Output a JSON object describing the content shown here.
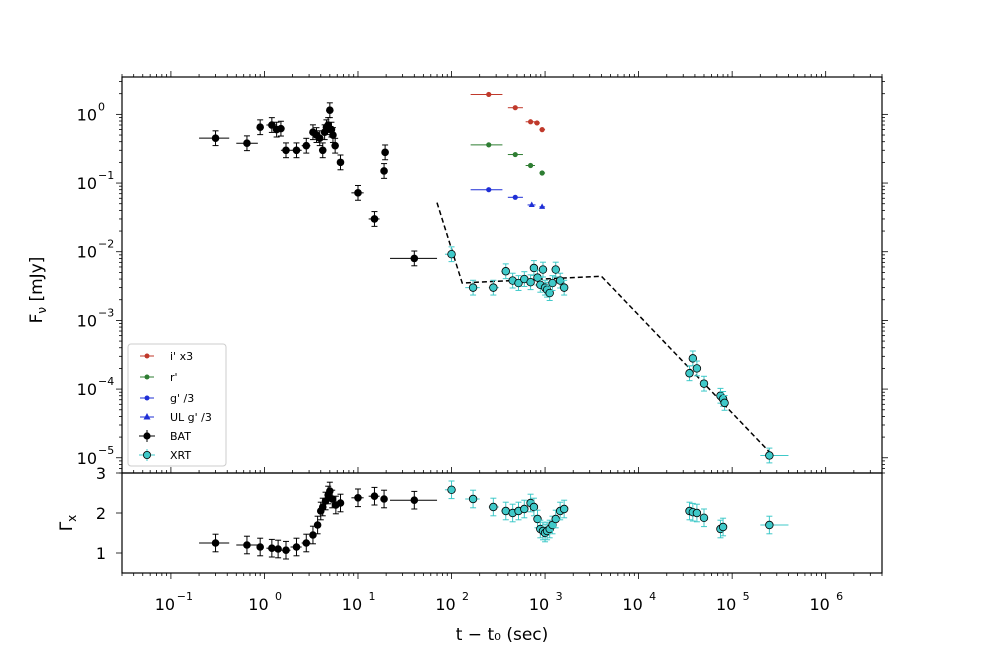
{
  "chart_data": {
    "type": "scatter",
    "x_scale": "log",
    "xlim": [
      0.03,
      4000000
    ],
    "xlabel": "t − t₀ (sec)",
    "x_tick_labels": [
      "10",
      "10",
      "10",
      "10",
      "10",
      "10",
      "10",
      "10"
    ],
    "x_tick_exponents": [
      "−1",
      "0",
      "1",
      "2",
      "3",
      "4",
      "5",
      "6"
    ],
    "x_tick_values": [
      0.1,
      1,
      10,
      100,
      1000,
      10000,
      100000,
      1000000
    ],
    "top_panel": {
      "ylabel": "F",
      "ylabel_sub": "ν",
      "ylabel_unit": " [mJy]",
      "y_scale": "log",
      "ylim": [
        6e-06,
        3.5
      ],
      "y_tick_labels": [
        "10",
        "10",
        "10",
        "10",
        "10",
        "10"
      ],
      "y_tick_exponents": [
        "0",
        "−1",
        "−2",
        "−3",
        "−4",
        "−5"
      ],
      "y_tick_values": [
        1,
        0.1,
        0.01,
        0.001,
        0.0001,
        1e-05
      ],
      "legend_position": "lower-left",
      "legend": [
        {
          "label": "i' x3",
          "color": "#c0392b",
          "marker": "circle-small"
        },
        {
          "label": "r'",
          "color": "#2e7d32",
          "marker": "circle-small"
        },
        {
          "label": "g' /3",
          "color": "#1f2fd6",
          "marker": "circle-small"
        },
        {
          "label": "UL g' /3",
          "color": "#1f2fd6",
          "marker": "triangle"
        },
        {
          "label": "BAT",
          "color": "#000000",
          "marker": "circle-large"
        },
        {
          "label": "XRT",
          "color": "#3fc9c9",
          "marker": "circle-outlined"
        }
      ],
      "series": [
        {
          "name": "BAT",
          "color": "#000000",
          "points": [
            [
              0.3,
              0.45,
              0.2,
              0.42
            ],
            [
              0.65,
              0.38,
              0.5,
              0.85
            ],
            [
              0.9,
              0.65,
              0.85,
              0.98
            ],
            [
              1.2,
              0.7,
              1.05,
              1.35
            ],
            [
              1.35,
              0.6,
              1.25,
              1.45
            ],
            [
              1.5,
              0.62,
              1.4,
              1.6
            ],
            [
              1.7,
              0.3,
              1.5,
              1.9
            ],
            [
              2.2,
              0.3,
              1.9,
              2.5
            ],
            [
              2.8,
              0.35,
              2.5,
              3.1
            ],
            [
              3.3,
              0.55,
              3.1,
              3.5
            ],
            [
              3.6,
              0.5,
              3.4,
              3.8
            ],
            [
              3.9,
              0.45,
              3.7,
              4.1
            ],
            [
              4.2,
              0.3,
              4.0,
              4.4
            ],
            [
              4.4,
              0.55,
              4.3,
              4.5
            ],
            [
              4.6,
              0.65,
              4.5,
              4.7
            ],
            [
              4.8,
              0.7,
              4.7,
              4.9
            ],
            [
              5.0,
              1.15,
              4.9,
              5.1
            ],
            [
              5.2,
              0.6,
              5.1,
              5.3
            ],
            [
              5.4,
              0.5,
              5.3,
              5.5
            ],
            [
              5.7,
              0.35,
              5.5,
              5.9
            ],
            [
              6.5,
              0.2,
              6.0,
              7.0
            ],
            [
              10,
              0.072,
              8.5,
              11.5
            ],
            [
              15,
              0.03,
              13,
              17
            ],
            [
              19,
              0.15,
              18,
              20
            ],
            [
              19.5,
              0.28,
              18.5,
              20.5
            ],
            [
              40,
              0.008,
              22,
              70
            ]
          ]
        },
        {
          "name": "XRT",
          "color": "#3fc9c9",
          "points": [
            [
              100,
              0.0092,
              85,
              110
            ],
            [
              170,
              0.003,
              140,
              200
            ],
            [
              280,
              0.003,
              250,
              320
            ],
            [
              380,
              0.0052,
              340,
              420
            ],
            [
              450,
              0.0038,
              420,
              480
            ],
            [
              520,
              0.0035,
              490,
              550
            ],
            [
              600,
              0.004,
              560,
              640
            ],
            [
              700,
              0.0036,
              650,
              740
            ],
            [
              760,
              0.0058,
              740,
              790
            ],
            [
              830,
              0.0042,
              800,
              860
            ],
            [
              890,
              0.0033,
              860,
              920
            ],
            [
              950,
              0.0055,
              920,
              980
            ],
            [
              1000,
              0.003,
              980,
              1030
            ],
            [
              1050,
              0.0028,
              1030,
              1080
            ],
            [
              1120,
              0.0025,
              1090,
              1150
            ],
            [
              1200,
              0.0035,
              1150,
              1250
            ],
            [
              1300,
              0.0055,
              1250,
              1350
            ],
            [
              1450,
              0.0038,
              1350,
              1550
            ],
            [
              1600,
              0.003,
              1500,
              1700
            ],
            [
              35000,
              0.00017,
              33000,
              37000
            ],
            [
              38000,
              0.00028,
              36000,
              40000
            ],
            [
              42000,
              0.0002,
              40000,
              44000
            ],
            [
              50000,
              0.00012,
              47000,
              53000
            ],
            [
              75000,
              8e-05,
              70000,
              80000
            ],
            [
              80000,
              7.2e-05,
              76000,
              84000
            ],
            [
              83000,
              6.3e-05,
              79000,
              87000
            ],
            [
              250000,
              1.08e-05,
              200000,
              400000
            ]
          ]
        },
        {
          "name": "i' x3",
          "color": "#c0392b",
          "points": [
            [
              250,
              1.95,
              160,
              350
            ],
            [
              480,
              1.25,
              400,
              580
            ],
            [
              700,
              0.78,
              620,
              780
            ],
            [
              820,
              0.75,
              760,
              880
            ],
            [
              930,
              0.6,
              870,
              1000
            ]
          ]
        },
        {
          "name": "r'",
          "color": "#2e7d32",
          "points": [
            [
              250,
              0.36,
              160,
              350
            ],
            [
              480,
              0.26,
              400,
              580
            ],
            [
              700,
              0.18,
              620,
              780
            ],
            [
              930,
              0.14,
              870,
              1000
            ]
          ]
        },
        {
          "name": "g' /3",
          "color": "#1f2fd6",
          "points": [
            [
              250,
              0.08,
              160,
              350
            ],
            [
              480,
              0.062,
              400,
              580
            ]
          ]
        },
        {
          "name": "UL g' /3",
          "color": "#1f2fd6",
          "marker": "triangle",
          "points": [
            [
              720,
              0.048,
              650,
              790
            ],
            [
              930,
              0.045,
              870,
              1000
            ]
          ]
        }
      ],
      "model_line": {
        "style": "dashed",
        "points": [
          [
            70,
            0.052
          ],
          [
            130,
            0.0035
          ],
          [
            4000,
            0.0044
          ],
          [
            260000,
            1.15e-05
          ]
        ]
      }
    },
    "bottom_panel": {
      "ylabel": "Γ",
      "ylabel_sub": "x",
      "ylim": [
        0.5,
        3.0
      ],
      "y_tick_labels": [
        "1",
        "2",
        "3"
      ],
      "y_tick_values": [
        1,
        2,
        3
      ],
      "series": [
        {
          "name": "BAT",
          "color": "#000000",
          "points": [
            [
              0.3,
              1.25,
              0.2,
              0.42
            ],
            [
              0.65,
              1.2,
              0.5,
              0.85
            ],
            [
              0.9,
              1.15,
              0.85,
              0.98
            ],
            [
              1.2,
              1.12,
              1.05,
              1.35
            ],
            [
              1.4,
              1.1,
              1.3,
              1.5
            ],
            [
              1.7,
              1.07,
              1.5,
              1.9
            ],
            [
              2.2,
              1.15,
              1.9,
              2.5
            ],
            [
              2.8,
              1.25,
              2.5,
              3.1
            ],
            [
              3.3,
              1.45,
              3.1,
              3.5
            ],
            [
              3.7,
              1.7,
              3.5,
              3.9
            ],
            [
              4.0,
              2.05,
              3.9,
              4.1
            ],
            [
              4.2,
              2.15,
              4.1,
              4.3
            ],
            [
              4.5,
              2.3,
              4.4,
              4.6
            ],
            [
              4.8,
              2.45,
              4.7,
              4.9
            ],
            [
              5.0,
              2.55,
              4.9,
              5.1
            ],
            [
              5.3,
              2.35,
              5.2,
              5.4
            ],
            [
              5.8,
              2.2,
              5.5,
              6.1
            ],
            [
              6.5,
              2.25,
              6.0,
              7.0
            ],
            [
              10,
              2.38,
              8.5,
              11.5
            ],
            [
              15,
              2.42,
              13,
              17
            ],
            [
              19,
              2.35,
              18,
              20
            ],
            [
              40,
              2.32,
              22,
              70
            ]
          ]
        },
        {
          "name": "XRT",
          "color": "#3fc9c9",
          "points": [
            [
              100,
              2.58,
              85,
              110
            ],
            [
              170,
              2.35,
              140,
              200
            ],
            [
              280,
              2.15,
              250,
              320
            ],
            [
              380,
              2.05,
              340,
              420
            ],
            [
              450,
              2.0,
              420,
              480
            ],
            [
              520,
              2.05,
              490,
              550
            ],
            [
              600,
              2.1,
              560,
              640
            ],
            [
              700,
              2.25,
              650,
              740
            ],
            [
              760,
              2.15,
              740,
              790
            ],
            [
              830,
              1.85,
              800,
              860
            ],
            [
              890,
              1.6,
              860,
              920
            ],
            [
              950,
              1.55,
              920,
              980
            ],
            [
              1000,
              1.5,
              980,
              1030
            ],
            [
              1050,
              1.55,
              1030,
              1080
            ],
            [
              1120,
              1.6,
              1090,
              1150
            ],
            [
              1200,
              1.7,
              1150,
              1250
            ],
            [
              1300,
              1.85,
              1250,
              1350
            ],
            [
              1450,
              2.05,
              1350,
              1550
            ],
            [
              1600,
              2.1,
              1500,
              1700
            ],
            [
              35000,
              2.05,
              33000,
              37000
            ],
            [
              38000,
              2.02,
              36000,
              40000
            ],
            [
              42000,
              2.0,
              40000,
              44000
            ],
            [
              50000,
              1.88,
              47000,
              53000
            ],
            [
              75000,
              1.6,
              70000,
              80000
            ],
            [
              80000,
              1.65,
              76000,
              84000
            ],
            [
              250000,
              1.7,
              200000,
              400000
            ]
          ]
        }
      ]
    }
  }
}
